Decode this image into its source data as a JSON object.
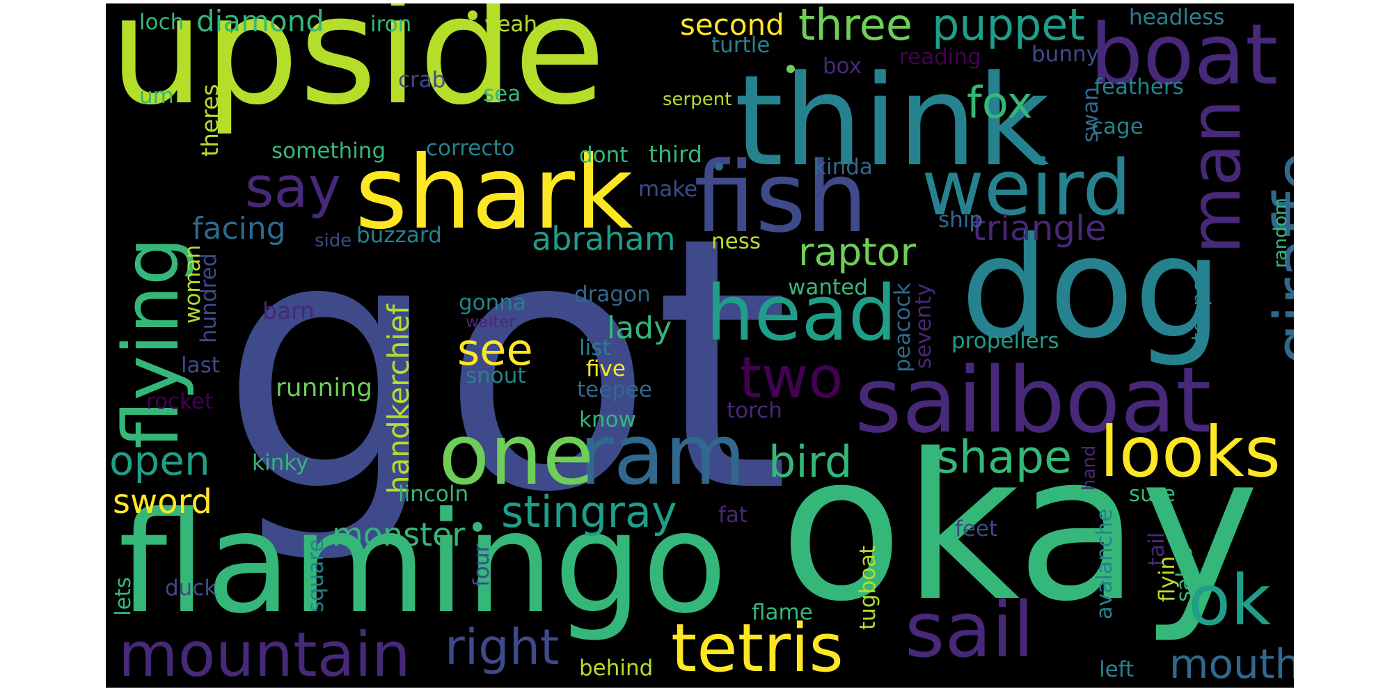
{
  "colors": {
    "c0": "#440154",
    "c1": "#482878",
    "c2": "#3e4a89",
    "c3": "#31688e",
    "c4": "#26828e",
    "c5": "#1f9e89",
    "c6": "#35b779",
    "c7": "#6ece58",
    "c8": "#b5de2b",
    "c9": "#fde725"
  },
  "words": [
    {
      "text": "got",
      "color": "c2"
    },
    {
      "text": "upside",
      "color": "c8"
    },
    {
      "text": "think",
      "color": "c4"
    },
    {
      "text": "boat",
      "color": "c1"
    },
    {
      "text": "okay",
      "color": "c6"
    },
    {
      "text": "flamingo",
      "color": "c6"
    },
    {
      "text": "dog",
      "color": "c4"
    },
    {
      "text": "sailboat",
      "color": "c1"
    },
    {
      "text": "fish",
      "color": "c2"
    },
    {
      "text": "shark",
      "color": "c9"
    },
    {
      "text": "head",
      "color": "c5"
    },
    {
      "text": "weird",
      "color": "c4"
    },
    {
      "text": "man",
      "color": "c1"
    },
    {
      "text": "giraffe",
      "color": "c3"
    },
    {
      "text": "flying",
      "color": "c6"
    },
    {
      "text": "ram",
      "color": "c3"
    },
    {
      "text": "one",
      "color": "c7"
    },
    {
      "text": "two",
      "color": "c0"
    },
    {
      "text": "sail",
      "color": "c1"
    },
    {
      "text": "ok",
      "color": "c5"
    },
    {
      "text": "mountain",
      "color": "c1"
    },
    {
      "text": "tetris",
      "color": "c9"
    },
    {
      "text": "looks",
      "color": "c9"
    },
    {
      "text": "say",
      "color": "c1"
    },
    {
      "text": "three",
      "color": "c7"
    },
    {
      "text": "puppet",
      "color": "c5"
    },
    {
      "text": "fox",
      "color": "c6"
    },
    {
      "text": "raptor",
      "color": "c7"
    },
    {
      "text": "triangle",
      "color": "c1"
    },
    {
      "text": "abraham",
      "color": "c5"
    },
    {
      "text": "see",
      "color": "c9"
    },
    {
      "text": "bird",
      "color": "c6"
    },
    {
      "text": "shape",
      "color": "c6"
    },
    {
      "text": "stingray",
      "color": "c5"
    },
    {
      "text": "right",
      "color": "c2"
    },
    {
      "text": "mouth",
      "color": "c3"
    },
    {
      "text": "open",
      "color": "c5"
    },
    {
      "text": "sword",
      "color": "c9"
    },
    {
      "text": "monster",
      "color": "c6"
    },
    {
      "text": "facing",
      "color": "c3"
    },
    {
      "text": "handkerchief",
      "color": "c8"
    },
    {
      "text": "lady",
      "color": "c6"
    },
    {
      "text": "diamond",
      "color": "c6"
    },
    {
      "text": "second",
      "color": "c9"
    },
    {
      "text": "running",
      "color": "c7"
    },
    {
      "text": "loch",
      "color": "c6"
    },
    {
      "text": "iron",
      "color": "c6"
    },
    {
      "text": "yeah",
      "color": "c8"
    },
    {
      "text": "headless",
      "color": "c4"
    },
    {
      "text": "turtle",
      "color": "c4"
    },
    {
      "text": "box",
      "color": "c1"
    },
    {
      "text": "reading",
      "color": "c0"
    },
    {
      "text": "bunny",
      "color": "c2"
    },
    {
      "text": "um",
      "color": "c6"
    },
    {
      "text": "crab",
      "color": "c2"
    },
    {
      "text": "sea",
      "color": "c6"
    },
    {
      "text": "serpent",
      "color": "c8"
    },
    {
      "text": "feathers",
      "color": "c4"
    },
    {
      "text": "theres",
      "color": "c8"
    },
    {
      "text": "swan",
      "color": "c3"
    },
    {
      "text": "cage",
      "color": "c4"
    },
    {
      "text": "something",
      "color": "c6"
    },
    {
      "text": "correcto",
      "color": "c4"
    },
    {
      "text": "dont",
      "color": "c6"
    },
    {
      "text": "third",
      "color": "c6"
    },
    {
      "text": "kinda",
      "color": "c3"
    },
    {
      "text": "make",
      "color": "c2"
    },
    {
      "text": "random",
      "color": "c6"
    },
    {
      "text": "ship",
      "color": "c3"
    },
    {
      "text": "side",
      "color": "c2"
    },
    {
      "text": "buzzard",
      "color": "c4"
    },
    {
      "text": "ness",
      "color": "c8"
    },
    {
      "text": "woman",
      "color": "c8"
    },
    {
      "text": "hundred",
      "color": "c2"
    },
    {
      "text": "barn",
      "color": "c1"
    },
    {
      "text": "gonna",
      "color": "c4"
    },
    {
      "text": "waiter",
      "color": "c1"
    },
    {
      "text": "dragon",
      "color": "c3"
    },
    {
      "text": "wanted",
      "color": "c6"
    },
    {
      "text": "peacock",
      "color": "c3"
    },
    {
      "text": "seventy",
      "color": "c1"
    },
    {
      "text": "teapot",
      "color": "c4"
    },
    {
      "text": "list",
      "color": "c4"
    },
    {
      "text": "propellers",
      "color": "c5"
    },
    {
      "text": "last",
      "color": "c2"
    },
    {
      "text": "snout",
      "color": "c4"
    },
    {
      "text": "five",
      "color": "c9"
    },
    {
      "text": "teepee",
      "color": "c3"
    },
    {
      "text": "rocket",
      "color": "c0"
    },
    {
      "text": "torch",
      "color": "c1"
    },
    {
      "text": "know",
      "color": "c6"
    },
    {
      "text": "kinky",
      "color": "c6"
    },
    {
      "text": "hand",
      "color": "c1"
    },
    {
      "text": "lincoln",
      "color": "c6"
    },
    {
      "text": "sure",
      "color": "c6"
    },
    {
      "text": "fat",
      "color": "c1"
    },
    {
      "text": "avalanche",
      "color": "c4"
    },
    {
      "text": "feet",
      "color": "c2"
    },
    {
      "text": "tail",
      "color": "c1"
    },
    {
      "text": "sales",
      "color": "c6"
    },
    {
      "text": "flyin",
      "color": "c8"
    },
    {
      "text": "square",
      "color": "c4"
    },
    {
      "text": "four",
      "color": "c2"
    },
    {
      "text": "tugboat",
      "color": "c8"
    },
    {
      "text": "duck",
      "color": "c2"
    },
    {
      "text": "lets",
      "color": "c6"
    },
    {
      "text": "flame",
      "color": "c6"
    },
    {
      "text": "behind",
      "color": "c8"
    },
    {
      "text": "left",
      "color": "c4"
    }
  ]
}
